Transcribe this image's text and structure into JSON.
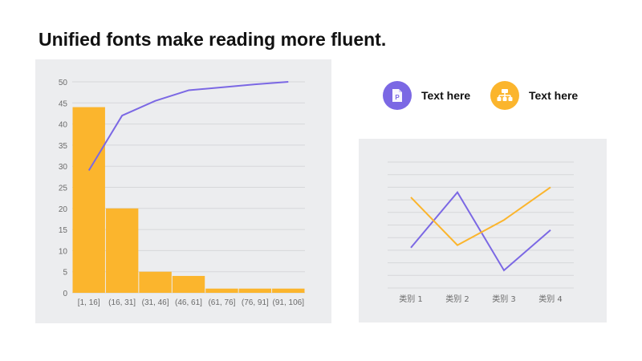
{
  "title": "Unified fonts make reading more fluent.",
  "colors": {
    "bar": "#fbb52d",
    "line": "#7b68e4",
    "grid": "#d6d7da",
    "axis_text": "#6b6b6b"
  },
  "legend": [
    {
      "label": "Text here",
      "icon": "document-p-icon",
      "color": "#7b68e4"
    },
    {
      "label": "Text here",
      "icon": "org-chart-icon",
      "color": "#fbb52d"
    }
  ],
  "chart_data": [
    {
      "type": "bar",
      "categories": [
        "[1, 16]",
        "(16, 31]",
        "(31, 46]",
        "(46, 61]",
        "(61, 76]",
        "(76, 91]",
        "(91, 106]"
      ],
      "values": [
        44,
        20,
        5,
        4,
        1,
        1,
        1
      ],
      "cumulative_line": [
        29,
        42,
        45.5,
        48,
        48.7,
        49.4,
        50
      ],
      "ylim": [
        0,
        50
      ],
      "yticks": [
        0,
        5,
        10,
        15,
        20,
        25,
        30,
        35,
        40,
        45,
        50
      ],
      "grid": true,
      "xlabel": "",
      "ylabel": ""
    },
    {
      "type": "line",
      "categories": [
        "类别 1",
        "类别 2",
        "类别 3",
        "类别 4"
      ],
      "series": [
        {
          "values": [
            1.6,
            3.8,
            0.7,
            2.3
          ],
          "color": "#7b68e4"
        },
        {
          "values": [
            3.6,
            1.7,
            2.7,
            4.0
          ],
          "color": "#fbb52d"
        }
      ],
      "ylim": [
        0,
        5
      ],
      "grid": true,
      "xlabel": "",
      "ylabel": ""
    }
  ]
}
